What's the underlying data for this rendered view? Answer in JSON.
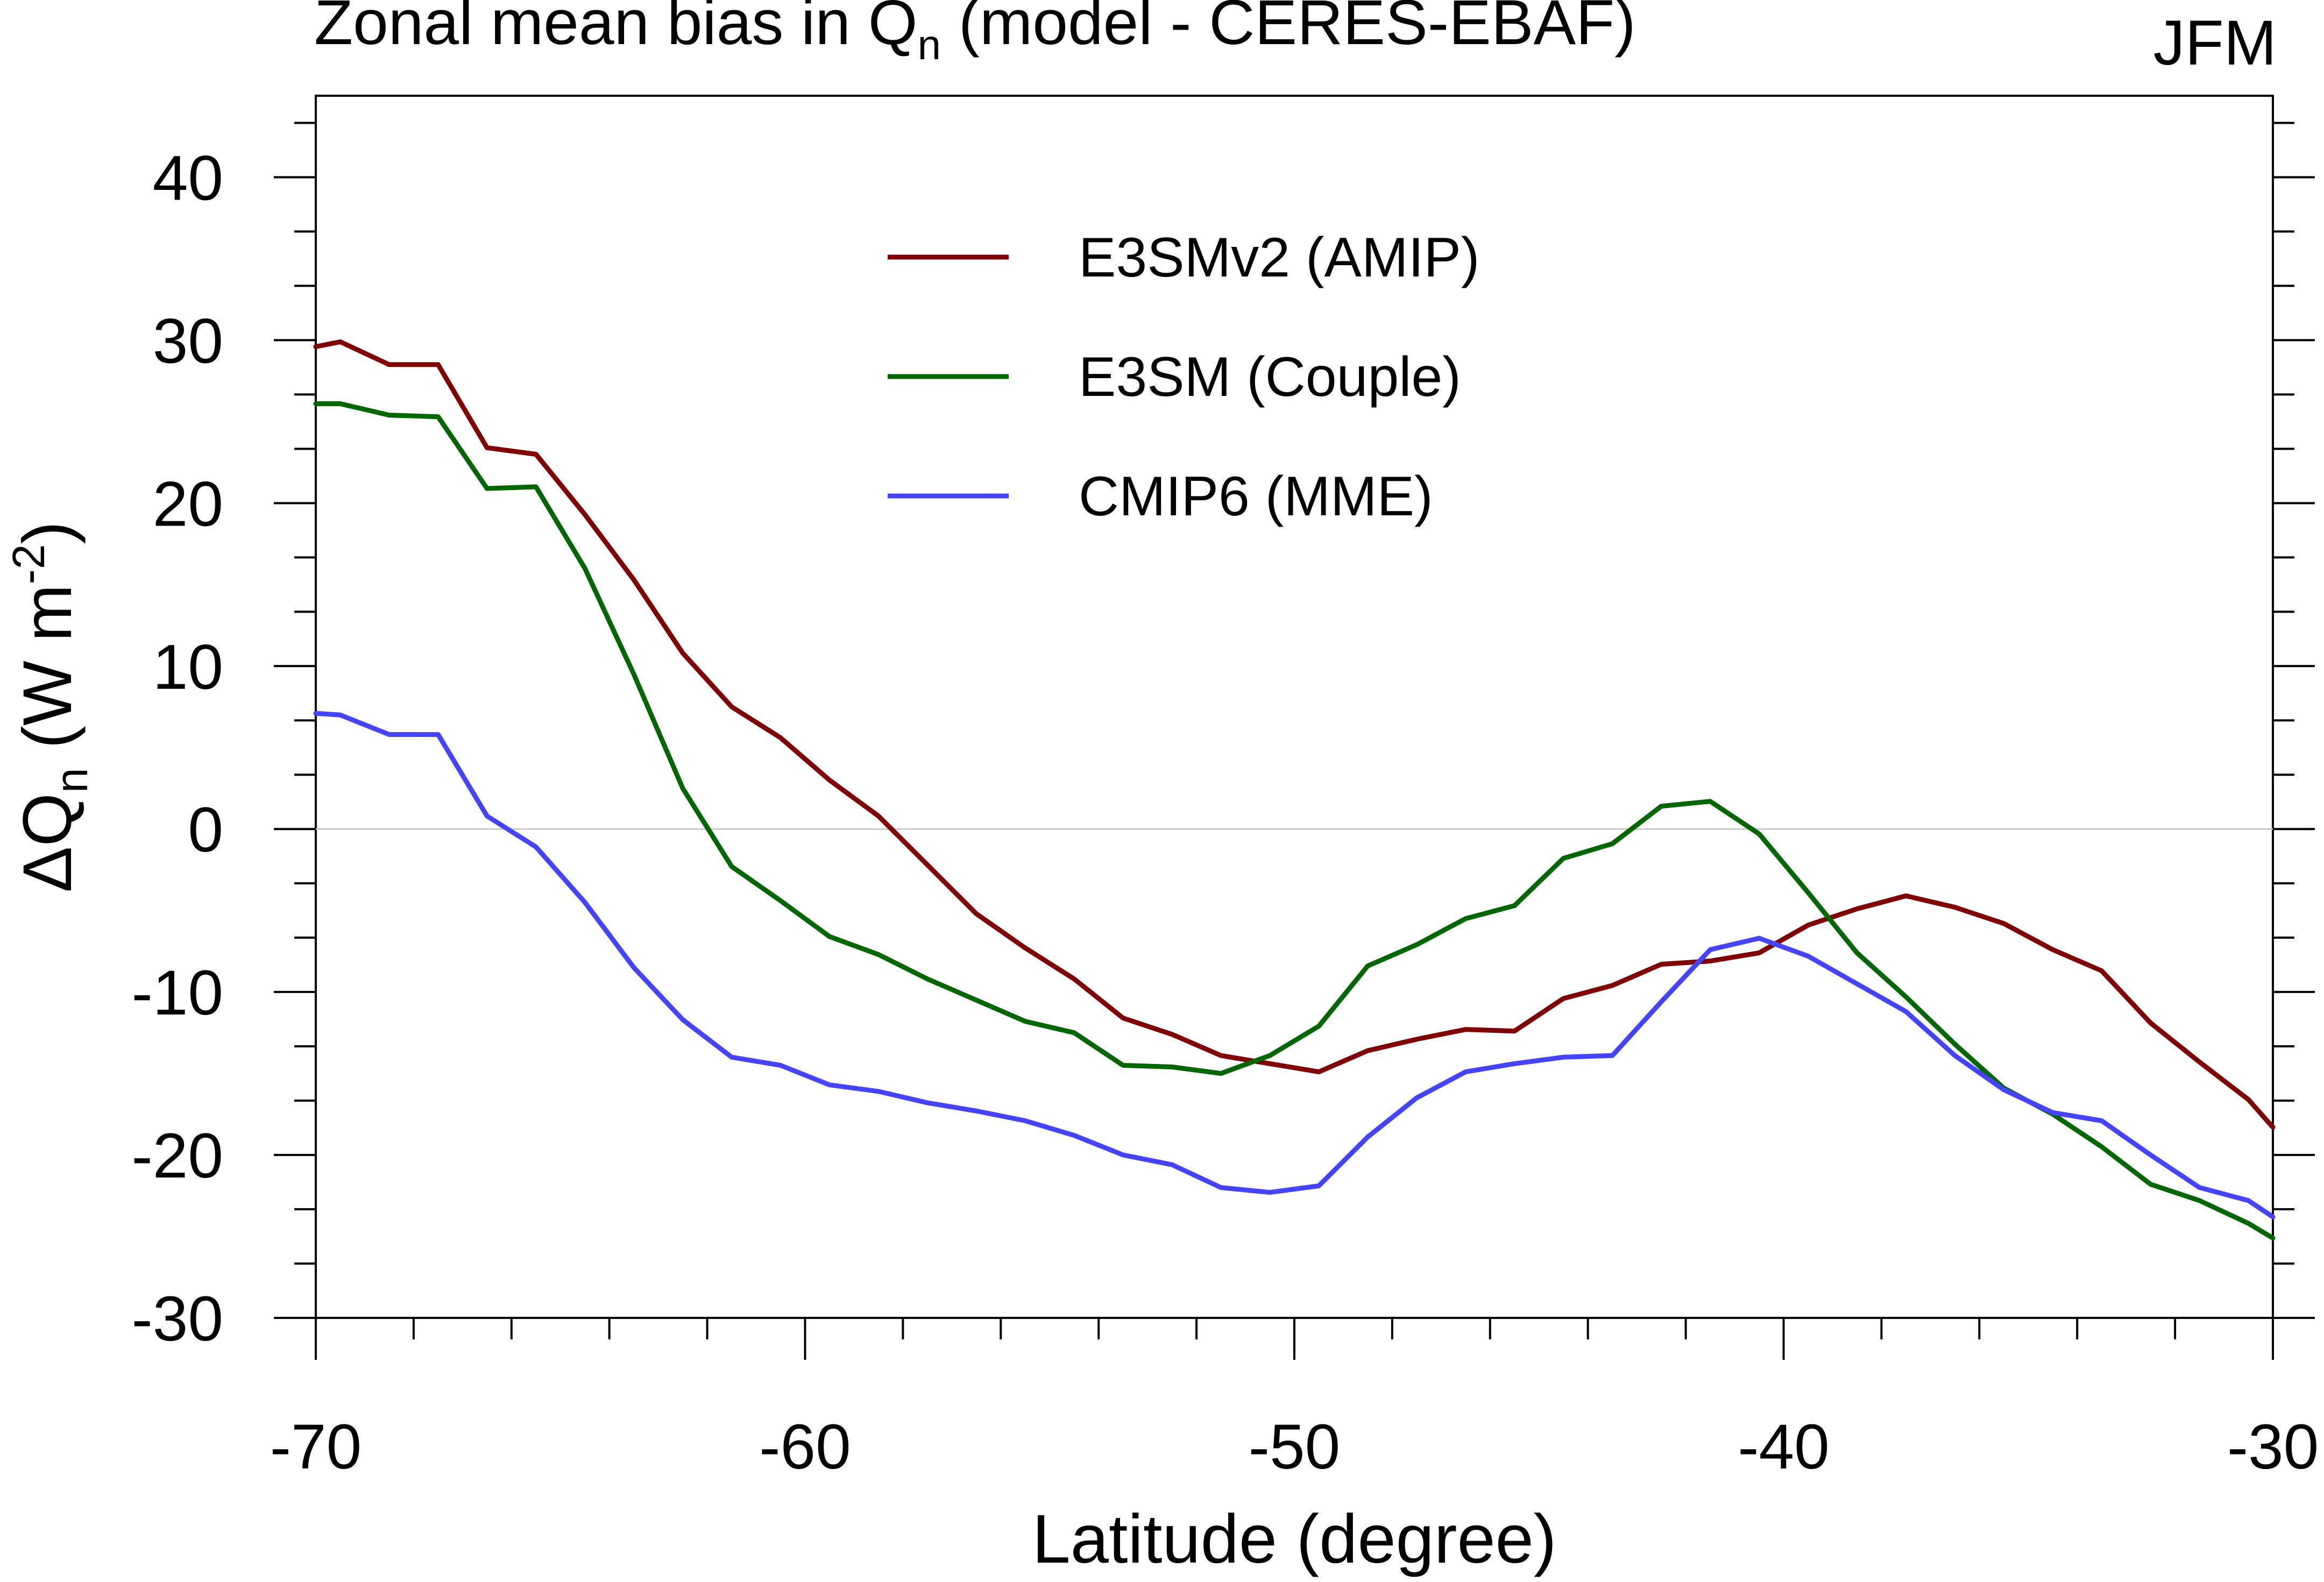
{
  "chart_data": {
    "type": "line",
    "title": "Zonal mean bias in Q",
    "title_subscript": "n",
    "title_suffix": " (model - CERES-EBAF)",
    "season": "JFM",
    "xlabel": "Latitude (degree)",
    "ylabel_prefix": "ΔQ",
    "ylabel_subscript": "n",
    "ylabel_unit_open": " (W m",
    "ylabel_unit_sup": "-2",
    "ylabel_unit_close": ")",
    "xlim": [
      -70,
      -30
    ],
    "ylim": [
      -30,
      45
    ],
    "xticks": [
      -70,
      -60,
      -50,
      -40,
      -30
    ],
    "xtick_labels": [
      "-70",
      "-60",
      "-50",
      "-40",
      "-30"
    ],
    "yticks": [
      -30,
      -20,
      -10,
      0,
      10,
      20,
      30,
      40
    ],
    "ytick_labels": [
      "-30",
      "-20",
      "-10",
      "0",
      "10",
      "20",
      "30",
      "40"
    ],
    "zero_line": true,
    "legend_position": "upper-center",
    "x": [
      -70,
      -69.5,
      -68.5,
      -67.5,
      -66.5,
      -65.5,
      -64.5,
      -63.5,
      -62.5,
      -61.5,
      -60.5,
      -59.5,
      -58.5,
      -57.5,
      -56.5,
      -55.5,
      -54.5,
      -53.5,
      -52.5,
      -51.5,
      -50.5,
      -49.5,
      -48.5,
      -47.5,
      -46.5,
      -45.5,
      -44.5,
      -43.5,
      -42.5,
      -41.5,
      -40.5,
      -39.5,
      -38.5,
      -37.5,
      -36.5,
      -35.5,
      -34.5,
      -33.5,
      -32.5,
      -31.5,
      -30.5,
      -30
    ],
    "series": [
      {
        "name": "E3SMv2 (AMIP)",
        "color": "#800000",
        "values": [
          29.6,
          29.9,
          28.5,
          28.5,
          23.4,
          23.0,
          19.3,
          15.3,
          10.8,
          7.5,
          5.6,
          3.0,
          0.8,
          -2.2,
          -5.2,
          -7.3,
          -9.2,
          -11.6,
          -12.6,
          -13.9,
          -14.4,
          -14.9,
          -13.6,
          -12.9,
          -12.3,
          -12.4,
          -10.4,
          -9.6,
          -8.3,
          -8.1,
          -7.6,
          -5.9,
          -4.9,
          -4.1,
          -4.8,
          -5.8,
          -7.4,
          -8.7,
          -11.9,
          -14.3,
          -16.6,
          -18.3
        ]
      },
      {
        "name": "E3SM (Couple)",
        "color": "#006600",
        "values": [
          26.1,
          26.1,
          25.4,
          25.3,
          20.9,
          21.0,
          16.0,
          9.5,
          2.5,
          -2.3,
          -4.4,
          -6.6,
          -7.7,
          -9.2,
          -10.5,
          -11.8,
          -12.5,
          -14.5,
          -14.6,
          -15.0,
          -13.9,
          -12.1,
          -8.4,
          -7.1,
          -5.5,
          -4.7,
          -1.8,
          -0.9,
          1.4,
          1.7,
          -0.3,
          -3.9,
          -7.6,
          -10.3,
          -13.2,
          -15.9,
          -17.5,
          -19.5,
          -21.8,
          -22.8,
          -24.2,
          -25.1
        ]
      },
      {
        "name": "CMIP6 (MME)",
        "color": "#4444ff",
        "values": [
          7.1,
          7.0,
          5.8,
          5.8,
          0.8,
          -1.1,
          -4.5,
          -8.5,
          -11.7,
          -14.0,
          -14.5,
          -15.7,
          -16.1,
          -16.8,
          -17.3,
          -17.9,
          -18.8,
          -20.0,
          -20.6,
          -22.0,
          -22.3,
          -21.9,
          -18.9,
          -16.5,
          -14.9,
          -14.4,
          -14.0,
          -13.9,
          -10.6,
          -7.4,
          -6.7,
          -7.8,
          -9.5,
          -11.2,
          -13.9,
          -16.0,
          -17.4,
          -17.9,
          -20.0,
          -22.0,
          -22.8,
          -23.8
        ]
      }
    ]
  }
}
